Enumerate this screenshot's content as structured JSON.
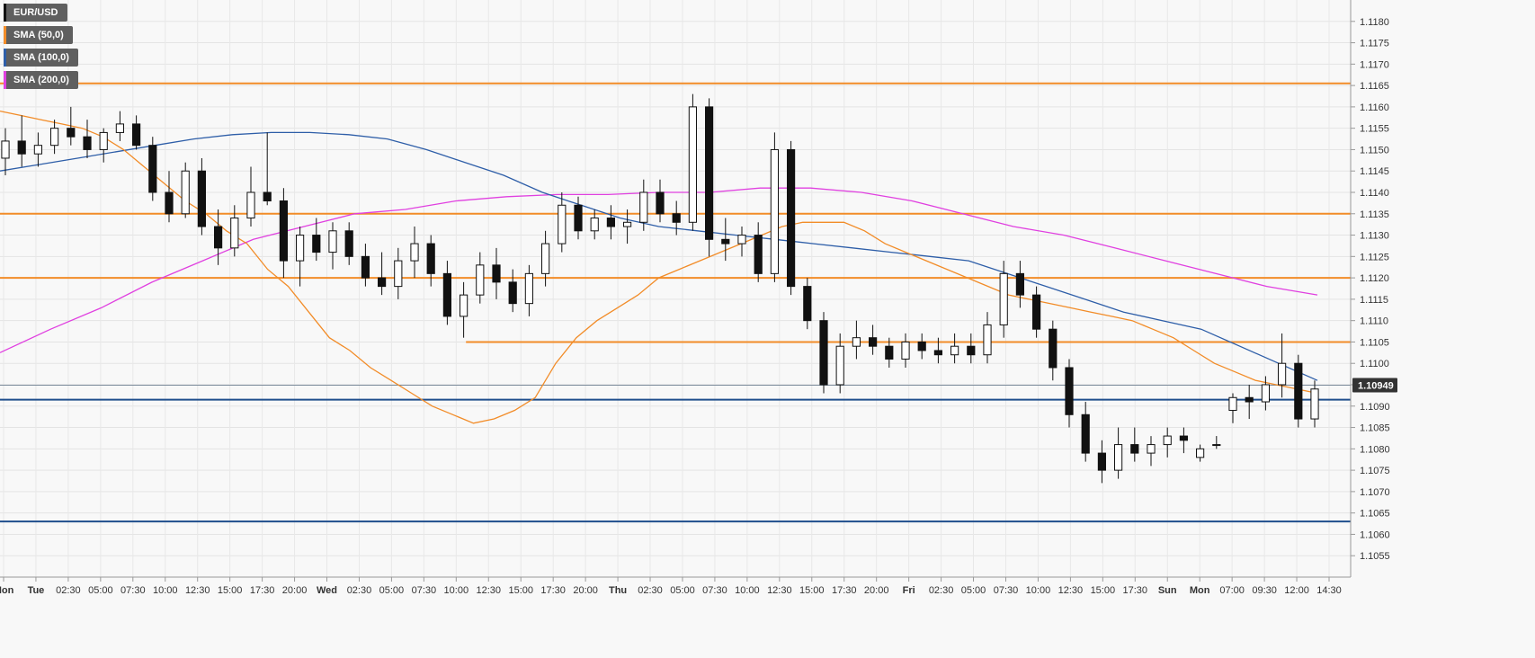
{
  "chart_data": {
    "type": "candlestick",
    "symbol": "EUR/USD",
    "indicators": [
      {
        "name": "SMA (50,0)",
        "color": "#f28c28"
      },
      {
        "name": "SMA (100,0)",
        "color": "#2e5ea8"
      },
      {
        "name": "SMA (200,0)",
        "color": "#e040e0"
      }
    ],
    "symbol_color": "#111111",
    "ylim": [
      1.105,
      1.1185
    ],
    "y_ticks": [
      "1.1180",
      "1.1175",
      "1.1170",
      "1.1165",
      "1.1160",
      "1.1155",
      "1.1150",
      "1.1145",
      "1.1140",
      "1.1135",
      "1.1130",
      "1.1125",
      "1.1120",
      "1.1115",
      "1.1110",
      "1.1105",
      "1.1100",
      "1.1095",
      "1.1090",
      "1.1085",
      "1.1080",
      "1.1075",
      "1.1070",
      "1.1065",
      "1.1060",
      "1.1055"
    ],
    "x_ticks": [
      {
        "label": "Mon",
        "bold": true
      },
      {
        "label": "Tue",
        "bold": true
      },
      {
        "label": "02:30"
      },
      {
        "label": "05:00"
      },
      {
        "label": "07:30"
      },
      {
        "label": "10:00"
      },
      {
        "label": "12:30"
      },
      {
        "label": "15:00"
      },
      {
        "label": "17:30"
      },
      {
        "label": "20:00"
      },
      {
        "label": "Wed",
        "bold": true
      },
      {
        "label": "02:30"
      },
      {
        "label": "05:00"
      },
      {
        "label": "07:30"
      },
      {
        "label": "10:00"
      },
      {
        "label": "12:30"
      },
      {
        "label": "15:00"
      },
      {
        "label": "17:30"
      },
      {
        "label": "20:00"
      },
      {
        "label": "Thu",
        "bold": true
      },
      {
        "label": "02:30"
      },
      {
        "label": "05:00"
      },
      {
        "label": "07:30"
      },
      {
        "label": "10:00"
      },
      {
        "label": "12:30"
      },
      {
        "label": "15:00"
      },
      {
        "label": "17:30"
      },
      {
        "label": "20:00"
      },
      {
        "label": "Fri",
        "bold": true
      },
      {
        "label": "02:30"
      },
      {
        "label": "05:00"
      },
      {
        "label": "07:30"
      },
      {
        "label": "10:00"
      },
      {
        "label": "12:30"
      },
      {
        "label": "15:00"
      },
      {
        "label": "17:30"
      },
      {
        "label": "Sun",
        "bold": true
      },
      {
        "label": "Mon",
        "bold": true
      },
      {
        "label": "07:00"
      },
      {
        "label": "09:30"
      },
      {
        "label": "12:00"
      },
      {
        "label": "14:30"
      }
    ],
    "current_price": {
      "label": "1.10949",
      "value": 1.10949
    },
    "horizontal_levels": [
      {
        "value": 1.11655,
        "color": "#f28c28",
        "x_start_frac": 0.0
      },
      {
        "value": 1.1135,
        "color": "#f28c28",
        "x_start_frac": 0.0
      },
      {
        "value": 1.112,
        "color": "#f28c28",
        "x_start_frac": 0.0
      },
      {
        "value": 1.1105,
        "color": "#f28c28",
        "x_start_frac": 0.345
      },
      {
        "value": 1.10915,
        "color": "#1f4e8c",
        "x_start_frac": 0.0
      },
      {
        "value": 1.1063,
        "color": "#1f4e8c",
        "x_start_frac": 0.0
      }
    ],
    "sma_50": [
      1.1159,
      1.1158,
      1.1157,
      1.1156,
      1.1155,
      1.1153,
      1.115,
      1.1146,
      1.1142,
      1.1138,
      1.1135,
      1.1131,
      1.1128,
      1.1122,
      1.1118,
      1.1112,
      1.1106,
      1.1103,
      1.1099,
      1.1096,
      1.1093,
      1.109,
      1.1088,
      1.1086,
      1.1087,
      1.1089,
      1.1092,
      1.11,
      1.1106,
      1.111,
      1.1113,
      1.1116,
      1.112,
      1.1122,
      1.1124,
      1.1126,
      1.1128,
      1.113,
      1.1132,
      1.1133,
      1.1133,
      1.1133,
      1.1131,
      1.1128,
      1.1126,
      1.1124,
      1.1122,
      1.112,
      1.1118,
      1.1116,
      1.1115,
      1.1114,
      1.1113,
      1.1112,
      1.1111,
      1.111,
      1.1108,
      1.1106,
      1.1103,
      1.11,
      1.1098,
      1.1096,
      1.1095,
      1.1094,
      1.1093
    ],
    "sma_100": [
      1.1145,
      1.11465,
      1.1148,
      1.11495,
      1.1151,
      1.11525,
      1.11535,
      1.1154,
      1.1154,
      1.11535,
      1.11525,
      1.115,
      1.1147,
      1.1144,
      1.114,
      1.1137,
      1.1134,
      1.1132,
      1.1131,
      1.113,
      1.1129,
      1.1128,
      1.1127,
      1.1126,
      1.1125,
      1.1124,
      1.1121,
      1.1118,
      1.1115,
      1.1112,
      1.111,
      1.1108,
      1.1104,
      1.11,
      1.1096
    ],
    "sma_200": [
      1.11025,
      1.1108,
      1.1113,
      1.1119,
      1.1124,
      1.1129,
      1.1132,
      1.1135,
      1.1136,
      1.1138,
      1.1139,
      1.11395,
      1.11395,
      1.114,
      1.114,
      1.1141,
      1.1141,
      1.114,
      1.1138,
      1.1135,
      1.1132,
      1.113,
      1.1127,
      1.1124,
      1.1121,
      1.1118,
      1.1116
    ],
    "candles": [
      {
        "o": 1.1148,
        "h": 1.1155,
        "l": 1.1144,
        "c": 1.1152
      },
      {
        "o": 1.1152,
        "h": 1.1158,
        "l": 1.1146,
        "c": 1.1149
      },
      {
        "o": 1.1149,
        "h": 1.1154,
        "l": 1.1146,
        "c": 1.1151
      },
      {
        "o": 1.1151,
        "h": 1.1157,
        "l": 1.1149,
        "c": 1.1155
      },
      {
        "o": 1.1155,
        "h": 1.116,
        "l": 1.1151,
        "c": 1.1153
      },
      {
        "o": 1.1153,
        "h": 1.1157,
        "l": 1.1148,
        "c": 1.115
      },
      {
        "o": 1.115,
        "h": 1.1155,
        "l": 1.1147,
        "c": 1.1154
      },
      {
        "o": 1.1154,
        "h": 1.1159,
        "l": 1.1152,
        "c": 1.1156
      },
      {
        "o": 1.1156,
        "h": 1.1158,
        "l": 1.115,
        "c": 1.1151
      },
      {
        "o": 1.1151,
        "h": 1.1153,
        "l": 1.1138,
        "c": 1.114
      },
      {
        "o": 1.114,
        "h": 1.1145,
        "l": 1.1133,
        "c": 1.1135
      },
      {
        "o": 1.1135,
        "h": 1.1147,
        "l": 1.1134,
        "c": 1.1145
      },
      {
        "o": 1.1145,
        "h": 1.1148,
        "l": 1.113,
        "c": 1.1132
      },
      {
        "o": 1.1132,
        "h": 1.1136,
        "l": 1.1123,
        "c": 1.1127
      },
      {
        "o": 1.1127,
        "h": 1.1137,
        "l": 1.1125,
        "c": 1.1134
      },
      {
        "o": 1.1134,
        "h": 1.1146,
        "l": 1.1132,
        "c": 1.114
      },
      {
        "o": 1.114,
        "h": 1.1154,
        "l": 1.1137,
        "c": 1.1138
      },
      {
        "o": 1.1138,
        "h": 1.1141,
        "l": 1.112,
        "c": 1.1124
      },
      {
        "o": 1.1124,
        "h": 1.1132,
        "l": 1.1118,
        "c": 1.113
      },
      {
        "o": 1.113,
        "h": 1.1134,
        "l": 1.1124,
        "c": 1.1126
      },
      {
        "o": 1.1126,
        "h": 1.1133,
        "l": 1.1122,
        "c": 1.1131
      },
      {
        "o": 1.1131,
        "h": 1.1133,
        "l": 1.1123,
        "c": 1.1125
      },
      {
        "o": 1.1125,
        "h": 1.1128,
        "l": 1.1118,
        "c": 1.112
      },
      {
        "o": 1.112,
        "h": 1.1126,
        "l": 1.1116,
        "c": 1.1118
      },
      {
        "o": 1.1118,
        "h": 1.1127,
        "l": 1.1115,
        "c": 1.1124
      },
      {
        "o": 1.1124,
        "h": 1.1132,
        "l": 1.112,
        "c": 1.1128
      },
      {
        "o": 1.1128,
        "h": 1.113,
        "l": 1.1118,
        "c": 1.1121
      },
      {
        "o": 1.1121,
        "h": 1.1124,
        "l": 1.1109,
        "c": 1.1111
      },
      {
        "o": 1.1111,
        "h": 1.1119,
        "l": 1.1106,
        "c": 1.1116
      },
      {
        "o": 1.1116,
        "h": 1.1126,
        "l": 1.1114,
        "c": 1.1123
      },
      {
        "o": 1.1123,
        "h": 1.1127,
        "l": 1.1115,
        "c": 1.1119
      },
      {
        "o": 1.1119,
        "h": 1.1122,
        "l": 1.1112,
        "c": 1.1114
      },
      {
        "o": 1.1114,
        "h": 1.1123,
        "l": 1.1111,
        "c": 1.1121
      },
      {
        "o": 1.1121,
        "h": 1.1131,
        "l": 1.1118,
        "c": 1.1128
      },
      {
        "o": 1.1128,
        "h": 1.114,
        "l": 1.1126,
        "c": 1.1137
      },
      {
        "o": 1.1137,
        "h": 1.1139,
        "l": 1.1129,
        "c": 1.1131
      },
      {
        "o": 1.1131,
        "h": 1.1136,
        "l": 1.1129,
        "c": 1.1134
      },
      {
        "o": 1.1134,
        "h": 1.1137,
        "l": 1.1129,
        "c": 1.1132
      },
      {
        "o": 1.1132,
        "h": 1.1136,
        "l": 1.1128,
        "c": 1.1133
      },
      {
        "o": 1.1133,
        "h": 1.1143,
        "l": 1.1131,
        "c": 1.114
      },
      {
        "o": 1.114,
        "h": 1.1143,
        "l": 1.1133,
        "c": 1.1135
      },
      {
        "o": 1.1135,
        "h": 1.1138,
        "l": 1.113,
        "c": 1.1133
      },
      {
        "o": 1.1133,
        "h": 1.1163,
        "l": 1.1131,
        "c": 1.116
      },
      {
        "o": 1.116,
        "h": 1.1162,
        "l": 1.1125,
        "c": 1.1129
      },
      {
        "o": 1.1129,
        "h": 1.1134,
        "l": 1.1124,
        "c": 1.1128
      },
      {
        "o": 1.1128,
        "h": 1.1132,
        "l": 1.1125,
        "c": 1.113
      },
      {
        "o": 1.113,
        "h": 1.1133,
        "l": 1.1119,
        "c": 1.1121
      },
      {
        "o": 1.1121,
        "h": 1.1154,
        "l": 1.1119,
        "c": 1.115
      },
      {
        "o": 1.115,
        "h": 1.1152,
        "l": 1.1116,
        "c": 1.1118
      },
      {
        "o": 1.1118,
        "h": 1.112,
        "l": 1.1108,
        "c": 1.111
      },
      {
        "o": 1.111,
        "h": 1.1112,
        "l": 1.1093,
        "c": 1.1095
      },
      {
        "o": 1.1095,
        "h": 1.1107,
        "l": 1.1093,
        "c": 1.1104
      },
      {
        "o": 1.1104,
        "h": 1.111,
        "l": 1.1101,
        "c": 1.1106
      },
      {
        "o": 1.1106,
        "h": 1.1109,
        "l": 1.1102,
        "c": 1.1104
      },
      {
        "o": 1.1104,
        "h": 1.1106,
        "l": 1.1099,
        "c": 1.1101
      },
      {
        "o": 1.1101,
        "h": 1.1107,
        "l": 1.1099,
        "c": 1.1105
      },
      {
        "o": 1.1105,
        "h": 1.1107,
        "l": 1.1101,
        "c": 1.1103
      },
      {
        "o": 1.1103,
        "h": 1.1106,
        "l": 1.11,
        "c": 1.1102
      },
      {
        "o": 1.1102,
        "h": 1.1107,
        "l": 1.11,
        "c": 1.1104
      },
      {
        "o": 1.1104,
        "h": 1.1107,
        "l": 1.11,
        "c": 1.1102
      },
      {
        "o": 1.1102,
        "h": 1.1112,
        "l": 1.11,
        "c": 1.1109
      },
      {
        "o": 1.1109,
        "h": 1.1124,
        "l": 1.1106,
        "c": 1.1121
      },
      {
        "o": 1.1121,
        "h": 1.1124,
        "l": 1.1113,
        "c": 1.1116
      },
      {
        "o": 1.1116,
        "h": 1.1118,
        "l": 1.1106,
        "c": 1.1108
      },
      {
        "o": 1.1108,
        "h": 1.111,
        "l": 1.1096,
        "c": 1.1099
      },
      {
        "o": 1.1099,
        "h": 1.1101,
        "l": 1.1085,
        "c": 1.1088
      },
      {
        "o": 1.1088,
        "h": 1.1091,
        "l": 1.1077,
        "c": 1.1079
      },
      {
        "o": 1.1079,
        "h": 1.1082,
        "l": 1.1072,
        "c": 1.1075
      },
      {
        "o": 1.1075,
        "h": 1.1085,
        "l": 1.1073,
        "c": 1.1081
      },
      {
        "o": 1.1081,
        "h": 1.1085,
        "l": 1.1077,
        "c": 1.1079
      },
      {
        "o": 1.1079,
        "h": 1.1083,
        "l": 1.1076,
        "c": 1.1081
      },
      {
        "o": 1.1081,
        "h": 1.1085,
        "l": 1.1078,
        "c": 1.1083
      },
      {
        "o": 1.1083,
        "h": 1.1085,
        "l": 1.1079,
        "c": 1.1082
      },
      {
        "o": 1.1078,
        "h": 1.1081,
        "l": 1.1077,
        "c": 1.108
      },
      {
        "o": 1.1081,
        "h": 1.1083,
        "l": 1.108,
        "c": 1.1081
      },
      {
        "o": 1.1089,
        "h": 1.1093,
        "l": 1.1086,
        "c": 1.1092
      },
      {
        "o": 1.1092,
        "h": 1.1095,
        "l": 1.1087,
        "c": 1.1091
      },
      {
        "o": 1.1091,
        "h": 1.1097,
        "l": 1.1089,
        "c": 1.1095
      },
      {
        "o": 1.1095,
        "h": 1.1107,
        "l": 1.1092,
        "c": 1.11
      },
      {
        "o": 1.11,
        "h": 1.1102,
        "l": 1.1085,
        "c": 1.1087
      },
      {
        "o": 1.1087,
        "h": 1.1096,
        "l": 1.1085,
        "c": 1.1094
      }
    ]
  }
}
